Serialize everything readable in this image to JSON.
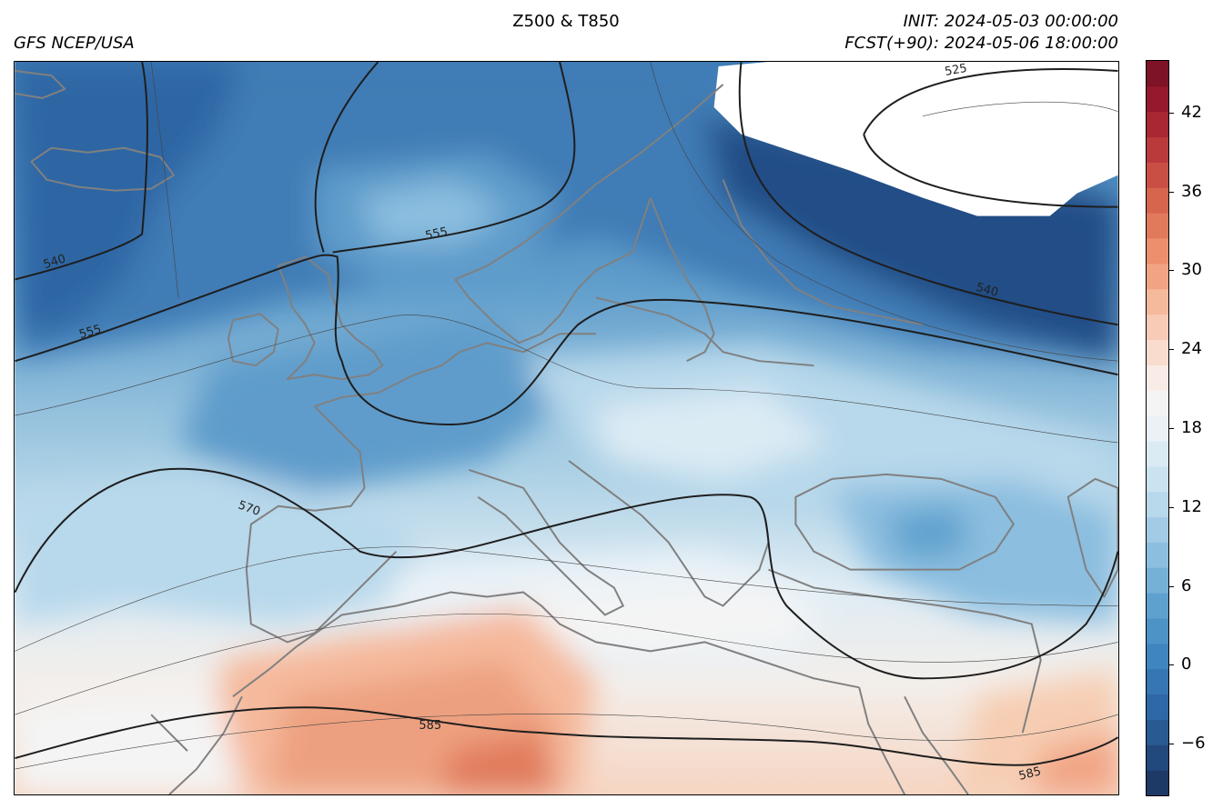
{
  "header": {
    "title": "Z500 & T850",
    "source": "GFS NCEP/USA",
    "init": "INIT: 2024-05-03 00:00:00",
    "forecast": "FCST(+90): 2024-05-06 18:00:00"
  },
  "colors": {
    "very_cold": "#2d5c97",
    "cold": "#3f7cb5",
    "cool": "#5f9dcb",
    "mild": "#93c2df",
    "pale": "#c8e0ee",
    "neutral": "#f2f1f0",
    "warm": "#f6cdb2",
    "hot": "#eda07f",
    "coast": "#7f7f7f",
    "contour": "#1e1e1e",
    "missing": "#ffffff"
  },
  "colorbar": {
    "min": -10,
    "max": 46,
    "ticks": [
      "42",
      "36",
      "30",
      "24",
      "18",
      "12",
      "6",
      "0",
      "−6"
    ],
    "tick_values": [
      42,
      36,
      30,
      24,
      18,
      12,
      6,
      0,
      -6
    ],
    "levels_colors": [
      "#1d3a67",
      "#23497c",
      "#2a5a92",
      "#2f68a6",
      "#3576b3",
      "#3f85be",
      "#4d93c6",
      "#5ea1ce",
      "#75b0d6",
      "#8bbedf",
      "#a3cbe5",
      "#b8d8eb",
      "#cbe3f0",
      "#dbebf4",
      "#eaf2f7",
      "#f4f4f4",
      "#f9ece6",
      "#fadccf",
      "#f8cbb6",
      "#f5b99c",
      "#f1a484",
      "#eb8f6e",
      "#e17a5c",
      "#d6654e",
      "#c94f44",
      "#ba3a3c",
      "#a82733",
      "#94192d",
      "#7e1226"
    ]
  },
  "contour_labels": [
    {
      "text": "525"
    },
    {
      "text": "540"
    },
    {
      "text": "540"
    },
    {
      "text": "555"
    },
    {
      "text": "555"
    },
    {
      "text": "570"
    },
    {
      "text": "585"
    },
    {
      "text": "585"
    }
  ]
}
